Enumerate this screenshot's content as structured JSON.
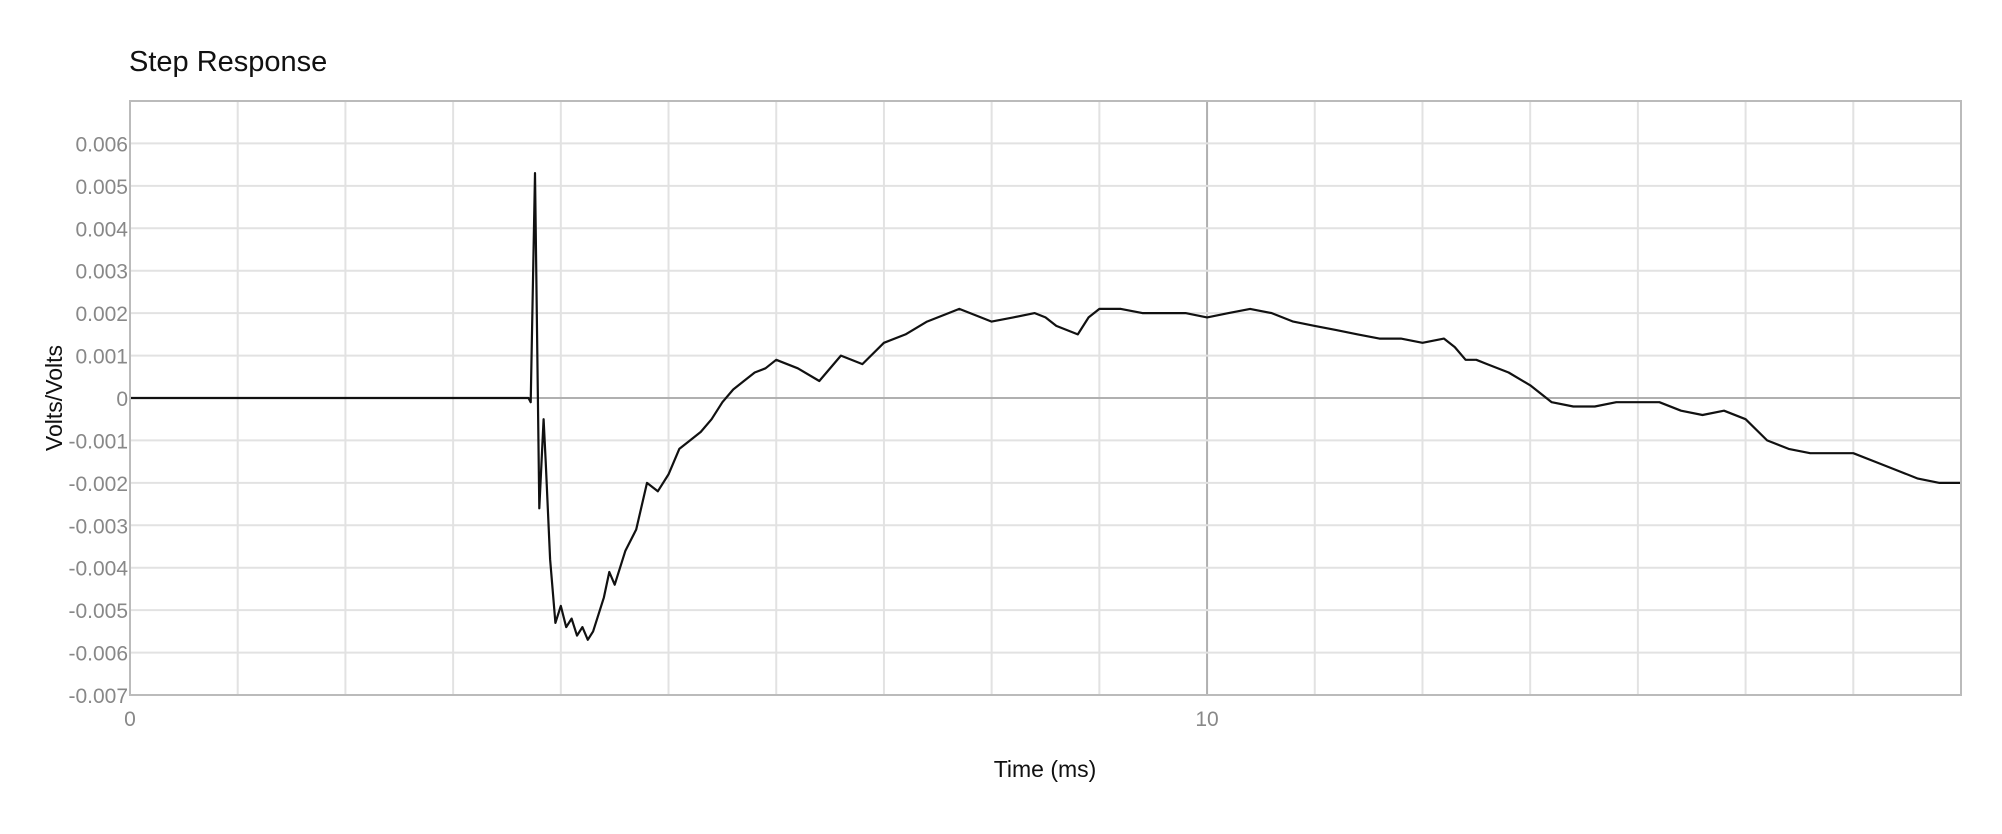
{
  "chart_data": {
    "type": "line",
    "title": "Step Response",
    "xlabel": "Time (ms)",
    "ylabel": "Volts/Volts",
    "xlim": [
      0,
      17
    ],
    "ylim": [
      -0.007,
      0.007
    ],
    "x_ticks": [
      {
        "value": 0,
        "label": "0"
      },
      {
        "value": 10,
        "label": "10"
      }
    ],
    "y_ticks": [
      {
        "value": 0.006,
        "label": "0.006"
      },
      {
        "value": 0.005,
        "label": "0.005"
      },
      {
        "value": 0.004,
        "label": "0.004"
      },
      {
        "value": 0.003,
        "label": "0.003"
      },
      {
        "value": 0.002,
        "label": "0.002"
      },
      {
        "value": 0.001,
        "label": "0.001"
      },
      {
        "value": 0,
        "label": "0"
      },
      {
        "value": -0.001,
        "label": "-0.001"
      },
      {
        "value": -0.002,
        "label": "-0.002"
      },
      {
        "value": -0.003,
        "label": "-0.003"
      },
      {
        "value": -0.004,
        "label": "-0.004"
      },
      {
        "value": -0.005,
        "label": "-0.005"
      },
      {
        "value": -0.006,
        "label": "-0.006"
      },
      {
        "value": -0.007,
        "label": "-0.007"
      }
    ],
    "x_grid_step": 1,
    "grid": true,
    "colors": {
      "line": "#111111",
      "grid": "#e2e2e2",
      "zero_line": "#b0b0b0",
      "frame": "#bbbbbb",
      "tick_label": "#888888"
    },
    "series": [
      {
        "x": [
          0,
          1,
          2,
          3,
          3.5,
          3.7,
          3.72,
          3.76,
          3.8,
          3.84,
          3.86,
          3.9,
          3.95,
          4.0,
          4.05,
          4.1,
          4.15,
          4.2,
          4.25,
          4.3,
          4.35,
          4.4,
          4.45,
          4.5,
          4.6,
          4.7,
          4.8,
          4.9,
          5.0,
          5.1,
          5.2,
          5.3,
          5.4,
          5.5,
          5.6,
          5.7,
          5.8,
          5.9,
          6.0,
          6.2,
          6.4,
          6.6,
          6.8,
          7.0,
          7.2,
          7.4,
          7.5,
          7.6,
          7.7,
          7.8,
          7.9,
          8.0,
          8.2,
          8.4,
          8.5,
          8.6,
          8.8,
          8.9,
          9.0,
          9.2,
          9.4,
          9.5,
          9.6,
          9.8,
          10.0,
          10.2,
          10.4,
          10.6,
          10.8,
          11.0,
          11.2,
          11.4,
          11.6,
          11.8,
          12.0,
          12.2,
          12.3,
          12.4,
          12.5,
          12.6,
          12.8,
          13.0,
          13.2,
          13.4,
          13.6,
          13.8,
          14.0,
          14.2,
          14.4,
          14.6,
          14.8,
          15.0,
          15.2,
          15.4,
          15.6,
          15.8,
          16.0,
          16.2,
          16.4,
          16.6,
          16.8,
          17.0
        ],
        "y": [
          0,
          0,
          0,
          0,
          0,
          0,
          -0.0001,
          0.0053,
          -0.0026,
          -0.0005,
          -0.0015,
          -0.0038,
          -0.0053,
          -0.0049,
          -0.0054,
          -0.0052,
          -0.0056,
          -0.0054,
          -0.0057,
          -0.0055,
          -0.0051,
          -0.0047,
          -0.0041,
          -0.0044,
          -0.0036,
          -0.0031,
          -0.002,
          -0.0022,
          -0.0018,
          -0.0012,
          -0.001,
          -0.0008,
          -0.0005,
          -0.0001,
          0.0002,
          0.0004,
          0.0006,
          0.0007,
          0.0009,
          0.0007,
          0.0004,
          0.001,
          0.0008,
          0.0013,
          0.0015,
          0.0018,
          0.0019,
          0.002,
          0.0021,
          0.002,
          0.0019,
          0.0018,
          0.0019,
          0.002,
          0.0019,
          0.0017,
          0.0015,
          0.0019,
          0.0021,
          0.0021,
          0.002,
          0.002,
          0.002,
          0.002,
          0.0019,
          0.002,
          0.0021,
          0.002,
          0.0018,
          0.0017,
          0.0016,
          0.0015,
          0.0014,
          0.0014,
          0.0013,
          0.0014,
          0.0012,
          0.0009,
          0.0009,
          0.0008,
          0.0006,
          0.0003,
          -0.0001,
          -0.0002,
          -0.0002,
          -0.0001,
          -0.0001,
          -0.0001,
          -0.0003,
          -0.0004,
          -0.0003,
          -0.0005,
          -0.001,
          -0.0012,
          -0.0013,
          -0.0013,
          -0.0013,
          -0.0015,
          -0.0017,
          -0.0019,
          -0.002,
          -0.002
        ]
      }
    ]
  }
}
